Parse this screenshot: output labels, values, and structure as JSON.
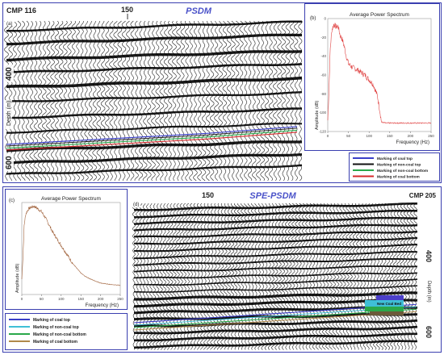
{
  "chart_data": [
    {
      "type": "seismic-section",
      "panel": "(a)",
      "title": "PSDM",
      "cmp_label": "CMP 116",
      "trace_label": "150",
      "ylabel": "Depth (m)",
      "y_ticks": [
        "400",
        "600"
      ]
    },
    {
      "type": "line",
      "panel": "(b)",
      "title": "Average Power Spectrum",
      "xlabel": "Frequency (Hz)",
      "ylabel": "Amplitude (dB)",
      "x_ticks": [
        "0",
        "50",
        "100",
        "150",
        "200",
        "250"
      ],
      "y_ticks": [
        "0",
        "-20",
        "-40",
        "-60",
        "-80",
        "-100",
        "-120"
      ],
      "xlim": [
        0,
        250
      ],
      "ylim": [
        -120,
        0
      ],
      "series": [
        {
          "x": [
            0,
            3,
            6,
            10,
            15,
            20,
            25,
            30,
            35,
            40,
            45,
            50,
            60,
            70,
            80,
            90,
            100,
            110,
            120,
            125,
            130,
            140,
            150,
            175,
            200,
            225,
            250
          ],
          "y": [
            -108,
            -75,
            -32,
            -12,
            -6,
            -9,
            -8,
            -18,
            -22,
            -30,
            -40,
            -48,
            -52,
            -54,
            -57,
            -60,
            -65,
            -70,
            -82,
            -95,
            -110,
            -111,
            -111,
            -111,
            -111,
            -111,
            -111
          ]
        }
      ]
    },
    {
      "type": "legend",
      "entries": [
        {
          "label": "Marking of coal top",
          "color": "#3a3fc9"
        },
        {
          "label": "Marking of non-coal top",
          "color": "#111111"
        },
        {
          "label": "Marking of non-coal bottom",
          "color": "#2aa84a"
        },
        {
          "label": "Marking of coal bottom",
          "color": "#d42a2a"
        }
      ]
    },
    {
      "type": "line",
      "panel": "(c)",
      "title": "Average Power Spectrum",
      "xlabel": "Frequency (Hz)",
      "ylabel": "Amplitude (dB)",
      "x_ticks": [
        "0",
        "50",
        "100",
        "150",
        "200",
        "250"
      ],
      "xlim": [
        0,
        250
      ],
      "ylim": [
        -120,
        0
      ],
      "series": [
        {
          "x": [
            0,
            3,
            6,
            10,
            15,
            20,
            25,
            30,
            35,
            40,
            50,
            60,
            70,
            80,
            90,
            100,
            110,
            120,
            130,
            140,
            150,
            160,
            175,
            190,
            200,
            225,
            250
          ],
          "y": [
            -100,
            -70,
            -30,
            -15,
            -10,
            -7,
            -6,
            -5,
            -6,
            -8,
            -12,
            -20,
            -30,
            -40,
            -48,
            -56,
            -64,
            -72,
            -80,
            -86,
            -92,
            -96,
            -100,
            -103,
            -105,
            -107,
            -108
          ]
        }
      ]
    },
    {
      "type": "legend",
      "entries": [
        {
          "label": "Marking of coal top",
          "color": "#3a3fc9"
        },
        {
          "label": "Marking of non-coal top",
          "color": "#3fbfd6"
        },
        {
          "label": "Marking of non-coal bottom",
          "color": "#2aa84a"
        },
        {
          "label": "Marking of coal bottom",
          "color": "#b0894a"
        }
      ]
    },
    {
      "type": "seismic-section",
      "panel": "(d)",
      "title": "SPE-PSDM",
      "cmp_label": "CMP 205",
      "trace_label": "150",
      "ylabel": "Depth (m)",
      "y_ticks": [
        "400",
        "600"
      ],
      "annotation": "New Coal Bed"
    }
  ]
}
